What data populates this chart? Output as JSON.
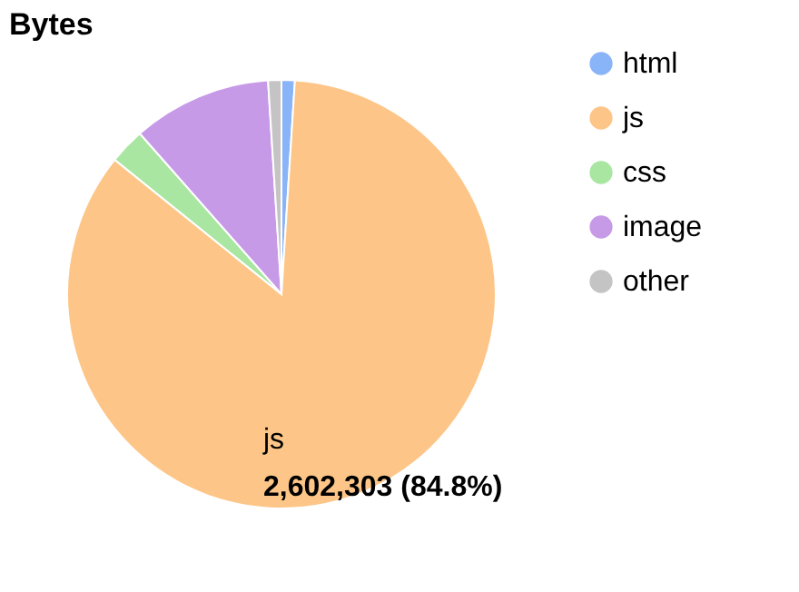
{
  "chart_data": {
    "type": "pie",
    "title": "Bytes",
    "categories": [
      "html",
      "js",
      "css",
      "image",
      "other"
    ],
    "values": [
      1.0,
      84.8,
      2.7,
      10.5,
      1.0
    ],
    "colors": [
      "#8ab4f8",
      "#fdc688",
      "#a8e6a1",
      "#c79ae8",
      "#c4c4c4"
    ],
    "legend": "right",
    "annotations": [
      "js",
      "2,602,303 (84.8%)"
    ]
  }
}
